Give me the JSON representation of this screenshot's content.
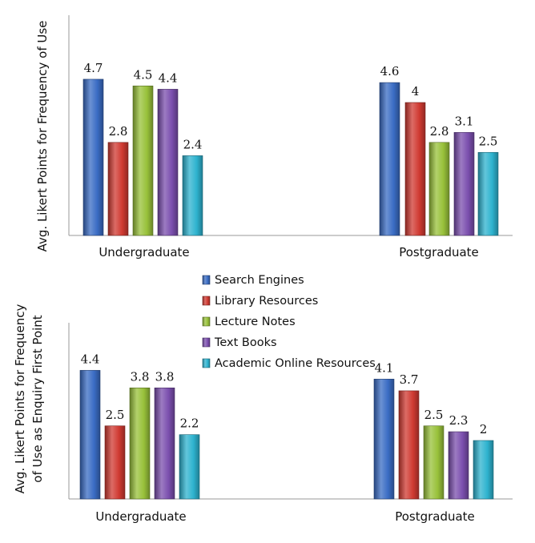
{
  "chart_data": [
    {
      "type": "bar",
      "ylabel": "Avg. Likert Points for Frequency of Use",
      "categories": [
        "Undergraduate",
        "Postgraduate"
      ],
      "series": [
        {
          "name": "Search Engines",
          "values": [
            4.7,
            4.6
          ]
        },
        {
          "name": "Library Resources",
          "values": [
            2.8,
            4
          ]
        },
        {
          "name": "Lecture Notes",
          "values": [
            4.5,
            2.8
          ]
        },
        {
          "name": "Text Books",
          "values": [
            4.4,
            3.1
          ]
        },
        {
          "name": "Academic Online Resources",
          "values": [
            2.4,
            2.5
          ]
        }
      ],
      "value_labels": [
        [
          "4.7",
          "4.6"
        ],
        [
          "2.8",
          "4"
        ],
        [
          "4.5",
          "2.8"
        ],
        [
          "4.4",
          "3.1"
        ],
        [
          "2.4",
          "2.5"
        ]
      ],
      "ylim": [
        0,
        5
      ],
      "grid": false,
      "legend": "below-chart"
    },
    {
      "type": "bar",
      "ylabel": "Avg. Likert Points for Frequency of Use as Enquiry First Point",
      "ylabel_lines": [
        "Avg. Likert Points for Frequency",
        "of Use as Enquiry First Point"
      ],
      "categories": [
        "Undergraduate",
        "Postgraduate"
      ],
      "series": [
        {
          "name": "Search Engines",
          "values": [
            4.4,
            4.1
          ]
        },
        {
          "name": "Library Resources",
          "values": [
            2.5,
            3.7
          ]
        },
        {
          "name": "Lecture Notes",
          "values": [
            3.8,
            2.5
          ]
        },
        {
          "name": "Text Books",
          "values": [
            3.8,
            2.3
          ]
        },
        {
          "name": "Academic Online Resources",
          "values": [
            2.2,
            2
          ]
        }
      ],
      "value_labels": [
        [
          "4.4",
          "4.1"
        ],
        [
          "2.5",
          "3.7"
        ],
        [
          "3.8",
          "2.5"
        ],
        [
          "3.8",
          "2.3"
        ],
        [
          "2.2",
          "2"
        ]
      ],
      "ylim": [
        0,
        5
      ],
      "grid": false,
      "legend": "top-center"
    }
  ],
  "colors": {
    "Search Engines": "#3a6cc4",
    "Library Resources": "#d03a32",
    "Lecture Notes": "#98c13a",
    "Text Books": "#7b4fae",
    "Academic Online Resources": "#2eb3cf"
  },
  "legend_items": [
    "Search Engines",
    "Library Resources",
    "Lecture Notes",
    "Text Books",
    "Academic Online Resources"
  ]
}
